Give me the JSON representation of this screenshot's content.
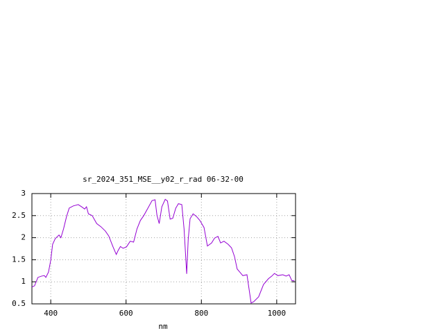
{
  "chart_data": {
    "type": "line",
    "title": "sr_2024_351_MSE__y02_r_rad 06-32-00",
    "xlabel": "nm",
    "color": "#9400d3",
    "grid": true,
    "xlim": [
      350,
      1050
    ],
    "xticks": [
      400,
      600,
      800,
      1000
    ],
    "ylim": [
      0.5,
      3
    ],
    "yticks": [
      0.5,
      1,
      1.5,
      2,
      2.5,
      3
    ],
    "x": [
      350,
      357,
      366,
      376,
      383,
      387,
      394,
      400,
      405,
      412,
      422,
      427,
      434,
      442,
      449,
      460,
      473,
      482,
      490,
      495,
      500,
      510,
      522,
      533,
      545,
      554,
      565,
      574,
      579,
      585,
      592,
      601,
      611,
      620,
      629,
      638,
      647,
      658,
      669,
      677,
      682,
      688,
      695,
      704,
      710,
      717,
      724,
      732,
      739,
      748,
      754,
      761,
      765,
      770,
      778,
      787,
      796,
      807,
      816,
      827,
      835,
      844,
      851,
      860,
      871,
      880,
      888,
      895,
      902,
      910,
      921,
      932,
      939,
      952,
      965,
      978,
      987,
      994,
      1003,
      1016,
      1025,
      1033,
      1040,
      1047
    ],
    "values": [
      0.88,
      0.91,
      1.1,
      1.13,
      1.14,
      1.1,
      1.22,
      1.49,
      1.85,
      1.98,
      2.06,
      2.0,
      2.2,
      2.48,
      2.67,
      2.72,
      2.75,
      2.7,
      2.65,
      2.7,
      2.54,
      2.5,
      2.32,
      2.25,
      2.15,
      2.04,
      1.8,
      1.62,
      1.71,
      1.8,
      1.76,
      1.79,
      1.92,
      1.9,
      2.2,
      2.39,
      2.5,
      2.67,
      2.84,
      2.86,
      2.51,
      2.32,
      2.7,
      2.87,
      2.83,
      2.42,
      2.44,
      2.67,
      2.77,
      2.75,
      2.2,
      1.18,
      1.96,
      2.43,
      2.54,
      2.48,
      2.39,
      2.23,
      1.81,
      1.88,
      1.99,
      2.03,
      1.88,
      1.92,
      1.85,
      1.77,
      1.57,
      1.29,
      1.22,
      1.14,
      1.16,
      0.52,
      0.55,
      0.66,
      0.94,
      1.07,
      1.13,
      1.19,
      1.14,
      1.16,
      1.13,
      1.16,
      1.03,
      1.02
    ]
  }
}
